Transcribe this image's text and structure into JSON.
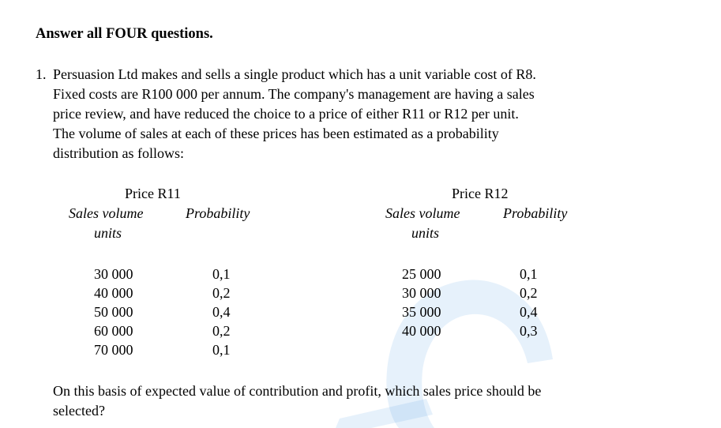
{
  "heading": "Answer all FOUR questions.",
  "question": {
    "number": "1.",
    "lines": [
      "Persuasion Ltd makes and sells a single product which has a unit variable cost of R8.",
      "Fixed costs are R100 000 per annum. The company's management are having a sales",
      "price review, and have reduced the choice to a price of either R11 or R12 per unit.",
      "The volume of sales at each of these prices has been estimated as a probability",
      "distribution as follows:"
    ],
    "closing_lines": [
      "On this basis of expected value of contribution and profit, which sales price should be",
      "selected?"
    ]
  },
  "tables": [
    {
      "title": "Price R11",
      "col1_header": "Sales volume",
      "col1_subheader": "units",
      "col2_header": "Probability",
      "volumes": [
        "30 000",
        "40 000",
        "50 000",
        "60 000",
        "70 000"
      ],
      "probabilities": [
        "0,1",
        "0,2",
        "0,4",
        "0,2",
        "0,1"
      ]
    },
    {
      "title": "Price R12",
      "col1_header": "Sales volume",
      "col1_subheader": "units",
      "col2_header": "Probability",
      "volumes": [
        "25 000",
        "30 000",
        "35 000",
        "40 000"
      ],
      "probabilities": [
        "0,1",
        "0,2",
        "0,4",
        "0,3"
      ]
    }
  ],
  "colors": {
    "watermark": "#3d8fe0",
    "text": "#000000"
  }
}
